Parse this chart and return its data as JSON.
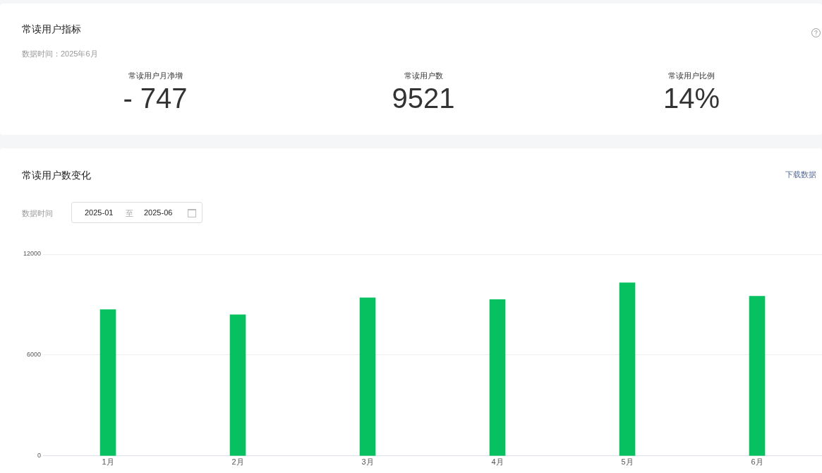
{
  "chart_data": [
    {
      "type": "other",
      "title": "常读用户指标",
      "subtitle": "数据时间：2025年6月",
      "annotations": [
        "常读用户月净增",
        "- 747",
        "常读用户数",
        "9521",
        "常读用户比例",
        "14%"
      ]
    },
    {
      "type": "bar",
      "title": "常读用户数变化",
      "annotations": [
        "下载数据",
        "数据时间",
        "2025-01",
        "至",
        "2025-06"
      ],
      "categories": [
        "1月",
        "2月",
        "3月",
        "4月",
        "5月",
        "6月"
      ],
      "values": [
        8700,
        8400,
        9400,
        9300,
        10300,
        9500
      ],
      "color": "#07c160",
      "ylim": [
        0,
        12000
      ],
      "yticks": [
        0,
        6000,
        12000
      ],
      "grid": "y"
    }
  ]
}
